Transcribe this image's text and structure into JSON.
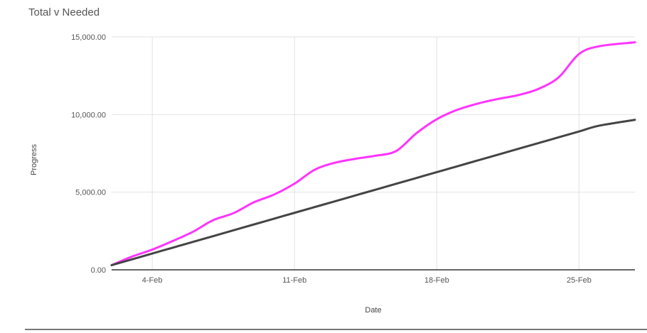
{
  "chart_data": {
    "type": "line",
    "title": "Total v Needed",
    "xlabel": "Date",
    "ylabel": "Progress",
    "x_dates_feb": [
      2,
      3,
      4,
      5,
      6,
      7,
      8,
      9,
      10,
      11,
      12,
      13,
      14,
      15,
      16,
      17,
      18,
      19,
      20,
      21,
      22,
      23,
      24,
      25,
      26,
      27
    ],
    "xticks": [
      "4-Feb",
      "11-Feb",
      "18-Feb",
      "25-Feb"
    ],
    "xticks_day": [
      4,
      11,
      18,
      25
    ],
    "xlim_day": [
      2,
      27.75
    ],
    "yticks": [
      "0.00",
      "5,000.00",
      "10,000.00",
      "15,000.00"
    ],
    "yticks_value": [
      0,
      5000,
      10000,
      15000
    ],
    "ylim": [
      0,
      15000
    ],
    "grid": true,
    "series": [
      {
        "color": "#ff33ff",
        "values": [
          300,
          850,
          1300,
          1850,
          2450,
          3200,
          3650,
          4350,
          4850,
          5550,
          6450,
          6900,
          7150,
          7350,
          7650,
          8800,
          9700,
          10300,
          10700,
          11000,
          11250,
          11650,
          12400,
          13900,
          14400,
          14650
        ]
      },
      {
        "color": "#444444",
        "values": [
          300,
          674,
          1049,
          1423,
          1798,
          2172,
          2546,
          2921,
          3295,
          3670,
          4044,
          4418,
          4793,
          5167,
          5542,
          5916,
          6290,
          6665,
          7039,
          7414,
          7788,
          8162,
          8537,
          8911,
          9286,
          9660
        ]
      }
    ]
  }
}
